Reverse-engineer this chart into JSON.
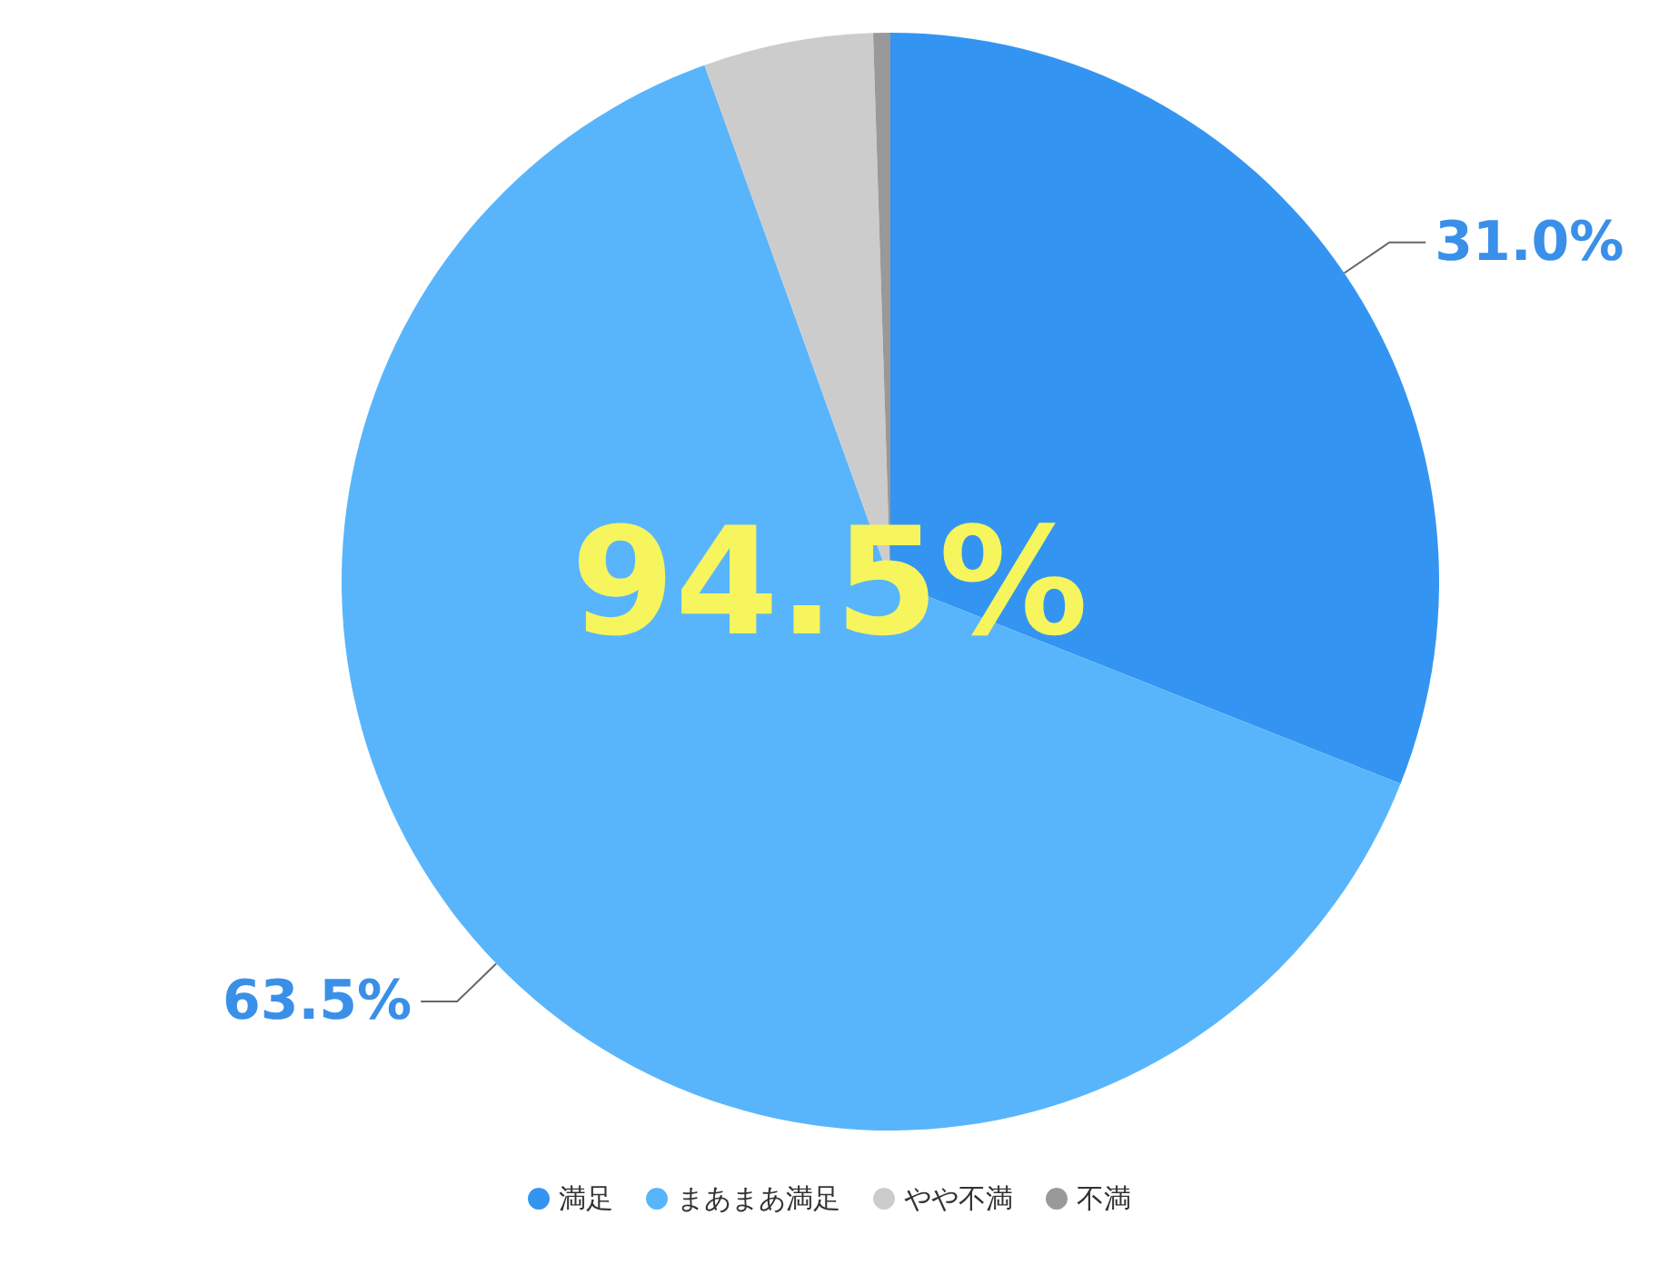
{
  "chart_data": {
    "type": "pie",
    "categories": [
      "満足",
      "まあまあ満足",
      "やや不満",
      "不満"
    ],
    "values": [
      31.0,
      63.5,
      5.0,
      0.5
    ],
    "colors": [
      "#3395f1",
      "#59b5fb",
      "#cccccc",
      "#999999"
    ],
    "value_labels": [
      "31.0%",
      "63.5%",
      null,
      null
    ],
    "annotations": [
      "94.5%"
    ],
    "legend": "bottom"
  }
}
